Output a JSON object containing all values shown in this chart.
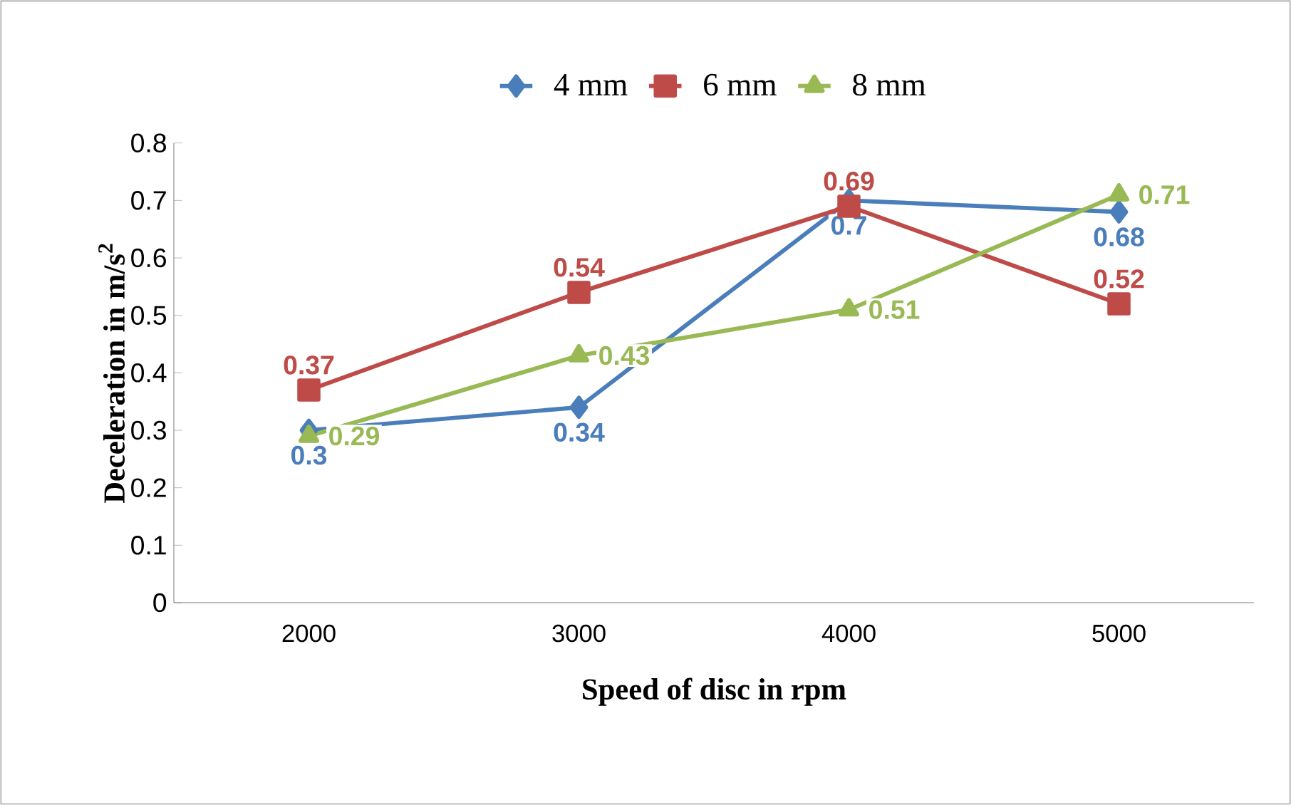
{
  "chart_data": {
    "type": "line",
    "xlabel": "Speed of disc in rpm",
    "ylabel": "Deceleration in m/s$^{2}$",
    "categories": [
      "2000",
      "3000",
      "4000",
      "5000"
    ],
    "series": [
      {
        "name": "4 mm",
        "color": "#4a7ebb",
        "marker": "diamond",
        "values": [
          0.3,
          0.34,
          0.7,
          0.68
        ]
      },
      {
        "name": "6 mm",
        "color": "#be4b48",
        "marker": "square",
        "values": [
          0.37,
          0.54,
          0.69,
          0.52
        ]
      },
      {
        "name": "8 mm",
        "color": "#98b954",
        "marker": "triangle",
        "values": [
          0.29,
          0.43,
          0.51,
          0.71
        ]
      }
    ],
    "ylim": [
      0,
      0.8
    ],
    "yticks": [
      0,
      0.1,
      0.2,
      0.3,
      0.4,
      0.5,
      0.6,
      0.7,
      0.8
    ],
    "legend": "top",
    "data_labels": true
  }
}
